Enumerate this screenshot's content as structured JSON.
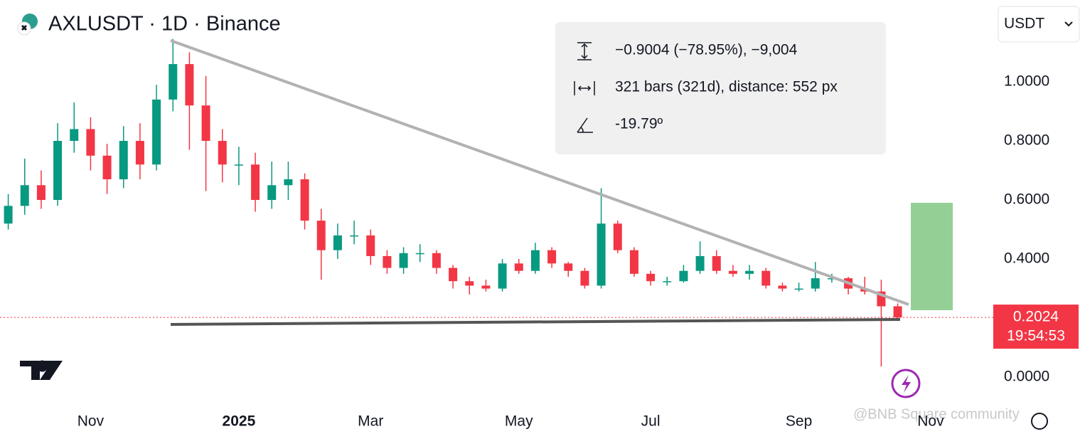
{
  "chart_data": {
    "type": "candlestick",
    "title": "AXLUSDT · 1D · Binance",
    "currency": "USDT",
    "countdown": "19:54:53",
    "watermark": "@BNB Square community",
    "measurement": [
      "−0.9004 (−78.95%), −9,004",
      "321 bars (321d), distance: 552 px",
      "-19.79º"
    ],
    "up_color": "#089981",
    "down_color": "#f23645",
    "categories": [
      null,
      null,
      null,
      null,
      null,
      "Nov",
      null,
      null,
      null,
      null,
      null,
      null,
      null,
      null,
      "2025",
      null,
      null,
      null,
      null,
      null,
      null,
      null,
      "Mar",
      null,
      null,
      null,
      null,
      null,
      null,
      null,
      null,
      "May",
      null,
      null,
      null,
      null,
      null,
      null,
      null,
      "Jul",
      null,
      null,
      null,
      null,
      null,
      null,
      null,
      null,
      "Sep",
      null,
      null,
      null,
      null,
      null,
      null,
      null,
      "Nov",
      null,
      null,
      null
    ],
    "open": [
      0.52,
      0.58,
      0.65,
      0.6,
      0.8,
      0.84,
      0.75,
      0.67,
      0.8,
      0.72,
      0.94,
      1.06,
      0.92,
      0.8,
      0.72,
      0.72,
      0.6,
      0.65,
      0.67,
      0.53,
      0.43,
      0.48,
      0.48,
      0.41,
      0.37,
      0.42,
      0.42,
      0.37,
      0.325,
      0.31,
      0.3,
      0.385,
      0.36,
      0.43,
      0.385,
      0.36,
      0.31,
      0.52,
      0.43,
      0.35,
      0.325,
      0.325,
      0.36,
      0.41,
      0.36,
      0.35,
      0.36,
      0.31,
      0.3,
      0.3,
      0.335,
      0.335,
      0.3,
      0.29,
      0.24,
      null,
      null,
      null,
      null,
      null
    ],
    "high": [
      0.62,
      0.74,
      0.7,
      0.86,
      0.93,
      0.88,
      0.79,
      0.85,
      0.86,
      0.99,
      1.145,
      1.1,
      1.02,
      0.84,
      0.78,
      0.76,
      0.73,
      0.73,
      0.69,
      0.57,
      0.52,
      0.53,
      0.5,
      0.43,
      0.44,
      0.45,
      0.43,
      0.38,
      0.34,
      0.33,
      0.4,
      0.4,
      0.455,
      0.44,
      0.39,
      0.37,
      0.64,
      0.53,
      0.44,
      0.36,
      0.34,
      0.38,
      0.46,
      0.43,
      0.38,
      0.38,
      0.37,
      0.32,
      0.32,
      0.39,
      0.35,
      0.34,
      0.34,
      0.33,
      0.25,
      null,
      null,
      null,
      null,
      null
    ],
    "low": [
      0.5,
      0.55,
      0.57,
      0.58,
      0.76,
      0.7,
      0.62,
      0.64,
      0.67,
      0.7,
      0.9,
      0.77,
      0.63,
      0.66,
      0.65,
      0.56,
      0.57,
      0.6,
      0.5,
      0.33,
      0.4,
      0.45,
      0.38,
      0.35,
      0.35,
      0.39,
      0.35,
      0.3,
      0.28,
      0.29,
      0.29,
      0.35,
      0.35,
      0.37,
      0.34,
      0.3,
      0.3,
      0.42,
      0.34,
      0.31,
      0.31,
      0.32,
      0.35,
      0.35,
      0.34,
      0.33,
      0.3,
      0.29,
      0.29,
      0.29,
      0.32,
      0.28,
      0.28,
      0.036,
      0.19,
      null,
      null,
      null,
      null,
      null
    ],
    "close": [
      0.58,
      0.65,
      0.6,
      0.8,
      0.84,
      0.75,
      0.67,
      0.8,
      0.72,
      0.94,
      1.06,
      0.92,
      0.8,
      0.72,
      0.72,
      0.6,
      0.65,
      0.67,
      0.53,
      0.43,
      0.48,
      0.48,
      0.41,
      0.37,
      0.42,
      0.42,
      0.37,
      0.325,
      0.31,
      0.3,
      0.385,
      0.36,
      0.43,
      0.385,
      0.36,
      0.31,
      0.52,
      0.43,
      0.35,
      0.325,
      0.325,
      0.36,
      0.41,
      0.36,
      0.35,
      0.36,
      0.31,
      0.3,
      0.3,
      0.335,
      0.335,
      0.3,
      0.29,
      0.24,
      0.2024,
      null,
      null,
      null,
      null,
      null
    ],
    "ylim": [
      -0.096,
      1.277
    ],
    "yticks": [
      {
        "value": 0,
        "label": "0.0000"
      },
      {
        "value": 0.4,
        "label": "0.4000"
      },
      {
        "value": 0.6,
        "label": "0.6000"
      },
      {
        "value": 0.8,
        "label": "0.8000"
      },
      {
        "value": 1,
        "label": "1.0000"
      }
    ]
  }
}
